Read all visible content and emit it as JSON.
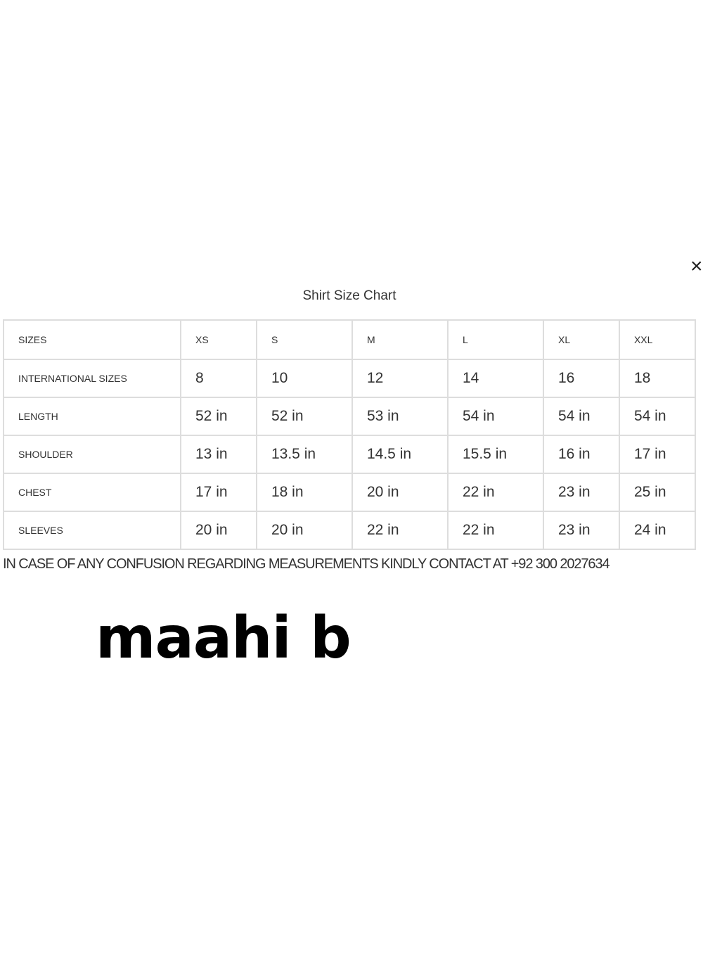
{
  "close_label": "×",
  "title": "Shirt Size Chart",
  "header": {
    "label": "SIZES",
    "values": [
      "XS",
      "S",
      "M",
      "L",
      "XL",
      "XXL"
    ]
  },
  "rows": [
    {
      "label": "INTERNATIONAL SIZES",
      "values": [
        "8",
        "10",
        "12",
        "14",
        "16",
        "18"
      ]
    },
    {
      "label": "LENGTH",
      "values": [
        "52 in",
        "52 in",
        "53 in",
        "54 in",
        "54 in",
        "54 in"
      ]
    },
    {
      "label": "SHOULDER",
      "values": [
        "13 in",
        "13.5 in",
        "14.5 in",
        "15.5 in",
        "16 in",
        "17 in"
      ]
    },
    {
      "label": "CHEST",
      "values": [
        "17 in",
        "18 in",
        "20 in",
        "22 in",
        "23 in",
        "25 in"
      ]
    },
    {
      "label": "SLEEVES",
      "values": [
        "20 in",
        "20 in",
        "22 in",
        "22 in",
        "23 in",
        "24 in"
      ]
    }
  ],
  "note": "IN CASE OF ANY CONFUSION REGARDING MEASUREMENTS KINDLY CONTACT AT +92 300 2027634",
  "watermark": "maahi b"
}
